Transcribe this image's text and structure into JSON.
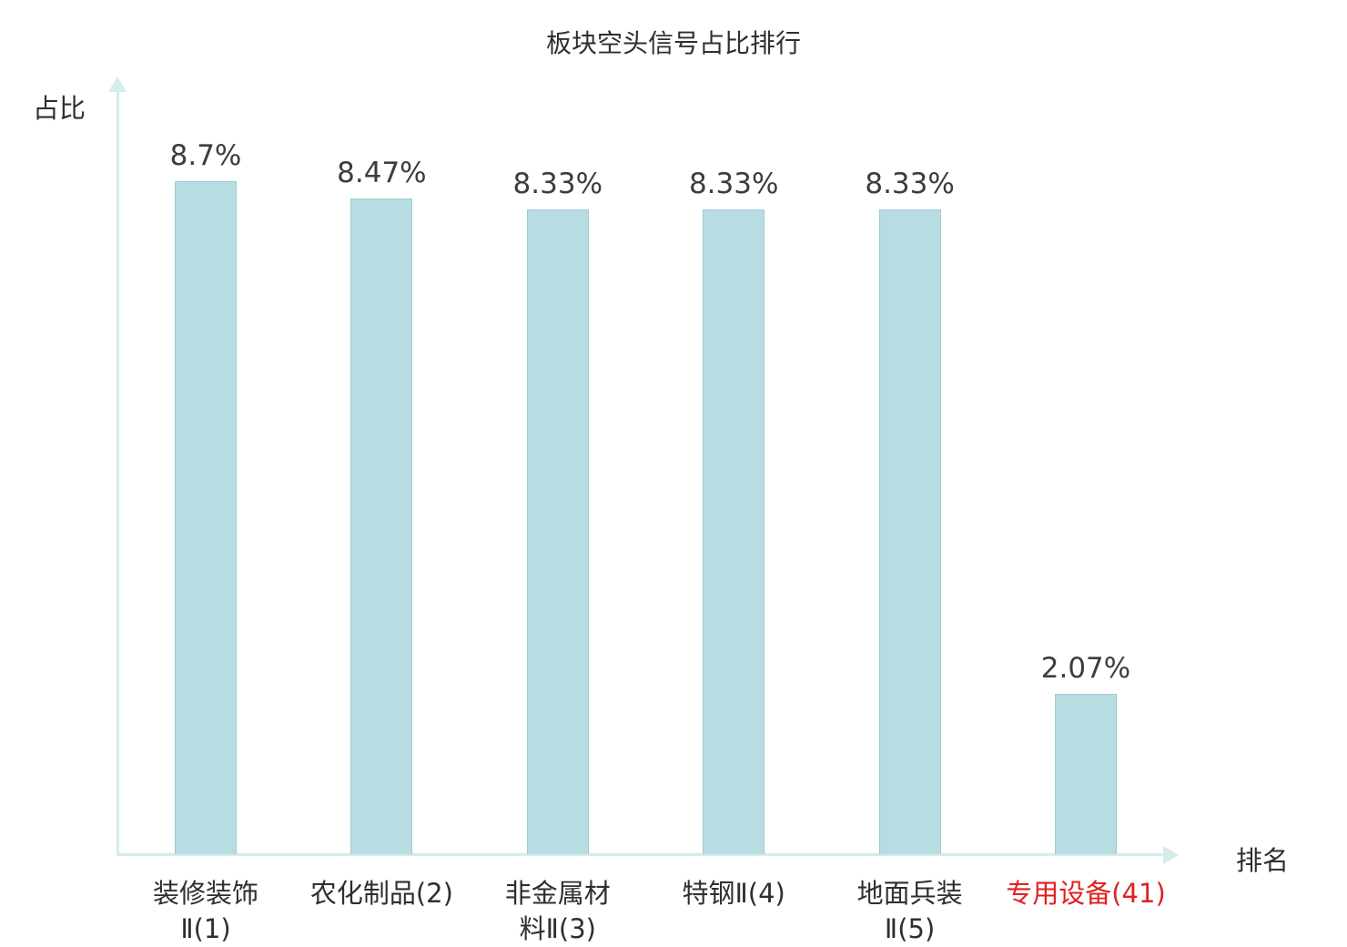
{
  "chart_data": {
    "type": "bar",
    "title": "板块空头信号占比排行",
    "xlabel": "排名",
    "ylabel": "占比",
    "categories": [
      "装修装饰Ⅱ(1)",
      "农化制品(2)",
      "非金属材料Ⅱ(3)",
      "特钢Ⅱ(4)",
      "地面兵装Ⅱ(5)",
      "专用设备(41)"
    ],
    "values": [
      8.7,
      8.47,
      8.33,
      8.33,
      8.33,
      2.07
    ],
    "value_labels": [
      "8.7%",
      "8.47%",
      "8.33%",
      "8.33%",
      "8.33%",
      "2.07%"
    ],
    "category_lines": [
      [
        "装修装饰",
        "Ⅱ(1)"
      ],
      [
        "农化制品(2)"
      ],
      [
        "非金属材",
        "料Ⅱ(3)"
      ],
      [
        "特钢Ⅱ(4)"
      ],
      [
        "地面兵装",
        "Ⅱ(5)"
      ],
      [
        "专用设备(41)"
      ]
    ],
    "highlight_index": 5,
    "ylim": [
      0,
      10
    ],
    "grid": false,
    "legend": "none",
    "style": {
      "bar_fill": "#b7dde2",
      "bar_border": "#9bccd4",
      "axis_color": "#d4ecec",
      "text_color": "#2f2f2f",
      "highlight_color": "#e02020"
    }
  }
}
